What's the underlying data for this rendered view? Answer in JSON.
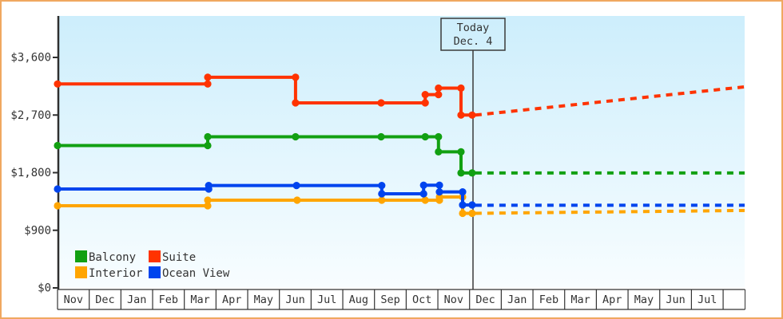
{
  "chart_data": {
    "type": "line",
    "title": "",
    "xlabel": "",
    "ylabel": "",
    "grid": false,
    "legend_position": "bottom-left",
    "ylim": [
      0,
      4200
    ],
    "y_axis": {
      "ticks": [
        {
          "label": "$3,600",
          "value": 3600
        },
        {
          "label": "$2,700",
          "value": 2700
        },
        {
          "label": "$1,800",
          "value": 1800
        },
        {
          "label": "$900",
          "value": 900
        },
        {
          "label": "$0",
          "value": 0
        }
      ]
    },
    "x_months": [
      "Nov",
      "Dec",
      "Jan",
      "Feb",
      "Mar",
      "Apr",
      "May",
      "Jun",
      "Jul",
      "Aug",
      "Sep",
      "Oct",
      "Nov",
      "Dec",
      "Jan",
      "Feb",
      "Mar",
      "Apr",
      "May",
      "Jun",
      "Jul"
    ],
    "today": {
      "line1": "Today",
      "line2": "Dec. 4",
      "x_unit": 13.13
    },
    "series": [
      {
        "name": "Interior",
        "color": "#ffa500",
        "points": [
          [
            0,
            1283
          ],
          [
            4.74,
            1283
          ],
          [
            4.74,
            1370
          ],
          [
            7.56,
            1370
          ],
          [
            10.23,
            1370
          ],
          [
            11.6,
            1370
          ],
          [
            12.05,
            1370
          ],
          [
            12.05,
            1420
          ],
          [
            12.78,
            1420
          ],
          [
            12.78,
            1165
          ],
          [
            13.08,
            1165
          ]
        ],
        "projection": [
          [
            13.18,
            1165
          ],
          [
            21.68,
            1210
          ]
        ]
      },
      {
        "name": "Ocean View",
        "color": "#0044ee",
        "points": [
          [
            0,
            1545
          ],
          [
            4.77,
            1545
          ],
          [
            4.77,
            1600
          ],
          [
            7.54,
            1600
          ],
          [
            10.23,
            1600
          ],
          [
            10.23,
            1470
          ],
          [
            11.55,
            1470
          ],
          [
            11.55,
            1605
          ],
          [
            12.05,
            1605
          ],
          [
            12.05,
            1500
          ],
          [
            12.78,
            1500
          ],
          [
            12.78,
            1295
          ],
          [
            13.08,
            1295
          ]
        ],
        "projection": [
          [
            13.18,
            1290
          ],
          [
            21.68,
            1290
          ]
        ]
      },
      {
        "name": "Balcony",
        "color": "#12a012",
        "points": [
          [
            0,
            2224
          ],
          [
            4.74,
            2224
          ],
          [
            4.74,
            2360
          ],
          [
            7.51,
            2360
          ],
          [
            10.21,
            2360
          ],
          [
            11.6,
            2360
          ],
          [
            12.02,
            2360
          ],
          [
            12.02,
            2125
          ],
          [
            12.73,
            2125
          ],
          [
            12.73,
            1795
          ],
          [
            13.08,
            1795
          ]
        ],
        "projection": [
          [
            13.18,
            1795
          ],
          [
            21.68,
            1795
          ]
        ]
      },
      {
        "name": "Suite",
        "color": "#ff3300",
        "points": [
          [
            0,
            3185
          ],
          [
            4.74,
            3185
          ],
          [
            4.74,
            3290
          ],
          [
            7.51,
            3290
          ],
          [
            7.51,
            2890
          ],
          [
            10.21,
            2890
          ],
          [
            11.6,
            2890
          ],
          [
            11.6,
            3020
          ],
          [
            12.02,
            3020
          ],
          [
            12.02,
            3120
          ],
          [
            12.73,
            3120
          ],
          [
            12.73,
            2700
          ],
          [
            13.08,
            2700
          ]
        ],
        "projection": [
          [
            13.18,
            2700
          ],
          [
            21.68,
            3140
          ]
        ]
      }
    ],
    "legend": {
      "items": [
        {
          "label": "Balcony",
          "color": "#12a012"
        },
        {
          "label": "Suite",
          "color": "#ff3300"
        },
        {
          "label": "Interior",
          "color": "#ffa500"
        },
        {
          "label": "Ocean View",
          "color": "#0044ee"
        }
      ]
    }
  },
  "colors": {
    "page_border": "#f0a860",
    "axis": "#2f2f2f",
    "plot_bg_top": "#cdeefc",
    "plot_bg_bottom": "#f8fdff",
    "today_line": "#3a3a3a"
  }
}
